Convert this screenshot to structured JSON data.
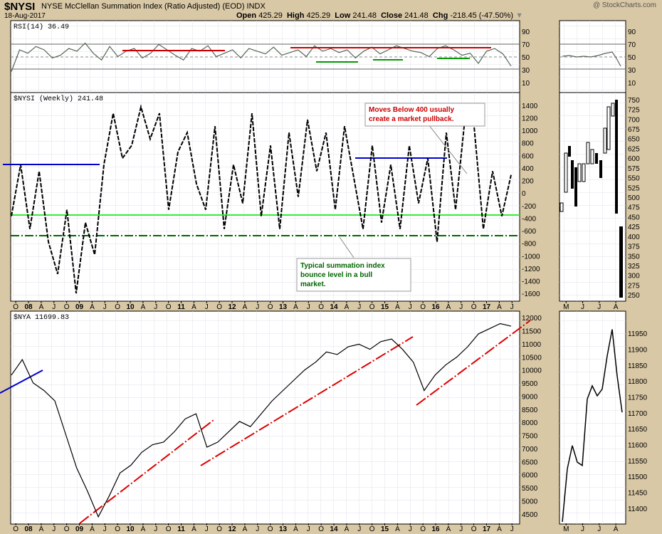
{
  "header": {
    "symbol": "$NYSI",
    "name": "NYSE McClellan Summation Index (Ratio Adjusted) (EOD)  INDX",
    "date": "18-Aug-2017",
    "open_label": "Open",
    "open": "425.29",
    "high_label": "High",
    "high": "425.29",
    "low_label": "Low",
    "low": "241.48",
    "close_label": "Close",
    "close": "241.48",
    "chg_label": "Chg",
    "chg": "-218.45 (-47.50%)",
    "brand": "@ StockCharts.com",
    "down_color": "#cc0000"
  },
  "annotations": {
    "pullback_line1": "Moves Below 400 usually",
    "pullback_line2": "create a market pullback.",
    "bounce_line1": "Typical summation index",
    "bounce_line2": "bounce level in a bull",
    "bounce_line3": "market.",
    "pullback_color": "#cc0000",
    "bounce_color": "#006600"
  },
  "chart_data": [
    {
      "type": "line",
      "title": "RSI(14) 36.49",
      "series": [
        {
          "name": "RSI(14)",
          "color": "#556655"
        }
      ],
      "y_ticks": [
        "90",
        "70",
        "50",
        "30",
        "10"
      ],
      "ylim": [
        0,
        100
      ],
      "reference_levels": [
        70,
        50,
        30
      ],
      "values_sample": [
        28,
        60,
        55,
        65,
        60,
        48,
        52,
        62,
        58,
        70,
        55,
        45,
        65,
        50,
        58,
        62,
        48,
        55,
        68,
        60,
        52,
        45,
        62,
        58,
        66,
        50,
        55,
        60,
        48,
        62,
        58,
        54,
        64,
        52,
        56,
        60,
        50,
        66,
        58,
        62,
        56,
        60,
        48,
        58,
        64,
        54,
        60,
        66,
        62,
        58,
        56,
        50,
        62,
        66,
        60,
        52,
        55,
        40,
        58,
        62,
        54,
        36
      ]
    },
    {
      "type": "line",
      "title": "$NYSI (Weekly) 241.48",
      "style": "dashed",
      "color": "#000000",
      "x_tick_labels": [
        "O",
        "08",
        "A",
        "J",
        "O",
        "09",
        "A",
        "J",
        "O",
        "10",
        "A",
        "J",
        "O",
        "11",
        "A",
        "J",
        "O",
        "12",
        "A",
        "J",
        "O",
        "13",
        "A",
        "J",
        "O",
        "14",
        "A",
        "J",
        "O",
        "15",
        "A",
        "J",
        "O",
        "16",
        "A",
        "J",
        "O",
        "17",
        "A",
        "J"
      ],
      "y_ticks": [
        "1400",
        "1200",
        "1000",
        "800",
        "600",
        "400",
        "200",
        "0",
        "-200",
        "-400",
        "-600",
        "-800",
        "-1000",
        "-1200",
        "-1400",
        "-1600"
      ],
      "ylim": [
        -1700,
        1500
      ],
      "values": [
        -400,
        400,
        -600,
        300,
        -800,
        -1300,
        -300,
        -1600,
        -500,
        -1000,
        400,
        1200,
        500,
        700,
        1300,
        800,
        1200,
        -300,
        600,
        900,
        100,
        -300,
        1000,
        -600,
        400,
        -200,
        1200,
        -400,
        700,
        -600,
        900,
        -100,
        1100,
        300,
        900,
        -300,
        1000,
        200,
        -600,
        700,
        -500,
        400,
        -600,
        700,
        -200,
        500,
        -800,
        900,
        -300,
        1100,
        1000,
        -600,
        300,
        -400,
        241
      ],
      "reference_levels": [
        {
          "value": 450,
          "color": "#0000cc",
          "style": "solid"
        },
        {
          "value": -300,
          "color": "#00dd00",
          "style": "solid"
        },
        {
          "value": -620,
          "color": "#006600",
          "style": "dashdot"
        }
      ]
    },
    {
      "type": "line",
      "title": "$NYA 11699.83",
      "color": "#000000",
      "x_tick_labels": [
        "O",
        "08",
        "A",
        "J",
        "O",
        "09",
        "A",
        "J",
        "O",
        "10",
        "A",
        "J",
        "O",
        "11",
        "A",
        "J",
        "O",
        "12",
        "A",
        "J",
        "O",
        "13",
        "A",
        "J",
        "O",
        "14",
        "A",
        "J",
        "O",
        "15",
        "A",
        "J",
        "O",
        "16",
        "A",
        "J",
        "O",
        "17",
        "A",
        "J"
      ],
      "y_ticks": [
        "12000",
        "11500",
        "11000",
        "10500",
        "10000",
        "9500",
        "9000",
        "8500",
        "8000",
        "7500",
        "7000",
        "6500",
        "6000",
        "5500",
        "5000",
        "4500"
      ],
      "ylim": [
        4100,
        12200
      ],
      "values": [
        9800,
        10400,
        9500,
        9200,
        8800,
        7500,
        6200,
        5300,
        4300,
        5100,
        6000,
        6300,
        6800,
        7100,
        7200,
        7600,
        8100,
        8300,
        7000,
        7200,
        7600,
        8000,
        7800,
        8300,
        8800,
        9200,
        9600,
        10000,
        10300,
        10700,
        10600,
        10900,
        11000,
        10800,
        11100,
        11200,
        10800,
        10300,
        9200,
        9800,
        10200,
        10500,
        10900,
        11400,
        11600,
        11800,
        11700
      ],
      "trendlines_color": "#dd0000"
    },
    {
      "type": "bar",
      "title": "$NYSI daily",
      "x_tick_labels": [
        "M",
        "J",
        "J",
        "A"
      ],
      "y_ticks": [
        "750",
        "725",
        "700",
        "675",
        "650",
        "625",
        "600",
        "575",
        "550",
        "525",
        "500",
        "475",
        "450",
        "425",
        "400",
        "375",
        "350",
        "325",
        "300",
        "275",
        "250"
      ],
      "ylim": [
        240,
        755
      ]
    },
    {
      "type": "line",
      "title": "$NYA daily",
      "x_tick_labels": [
        "M",
        "J",
        "J",
        "A"
      ],
      "y_ticks": [
        "11950",
        "11900",
        "11850",
        "11800",
        "11750",
        "11700",
        "11650",
        "11600",
        "11550",
        "11500",
        "11450",
        "11400"
      ],
      "ylim": [
        11380,
        12000
      ],
      "values": [
        11380,
        11540,
        11610,
        11560,
        11550,
        11750,
        11790,
        11760,
        11780,
        11880,
        11960,
        11820,
        11710
      ]
    }
  ]
}
